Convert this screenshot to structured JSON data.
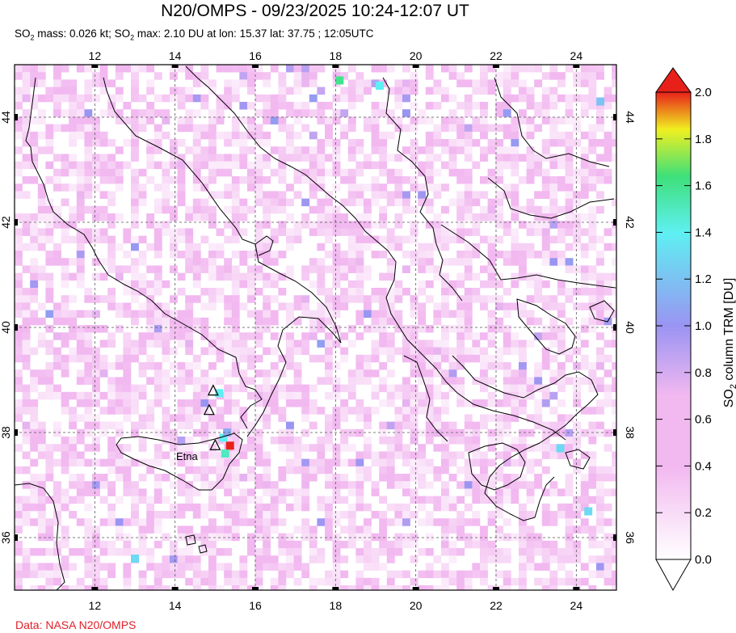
{
  "title": "N20/OMPS - 09/23/2025 10:24-12:07 UT",
  "subtitle": {
    "so2_mass_prefix": "SO",
    "so2_mass_sub": "2",
    "so2_mass_text": " mass: 0.026 kt; SO",
    "so2_max_sub": "2",
    "so2_max_text": " max: 2.10 DU at lon: 15.37 lat: 37.75 ; 12:05UTC"
  },
  "source": "Data: NASA N20/OMPS",
  "map": {
    "lon_ticks": [
      "12",
      "14",
      "16",
      "18",
      "20",
      "22",
      "24"
    ],
    "lat_ticks": [
      "36",
      "38",
      "40",
      "42",
      "44"
    ],
    "lon_range": [
      10,
      25
    ],
    "lat_range": [
      35,
      45
    ],
    "volcano_label": "Etna",
    "volcanoes": [
      {
        "name": "Etna",
        "lon": 15.0,
        "lat": 37.75
      },
      {
        "name": "",
        "lon": 14.95,
        "lat": 38.79
      },
      {
        "name": "",
        "lon": 14.85,
        "lat": 38.42
      }
    ]
  },
  "colorbar": {
    "label_prefix": "SO",
    "label_sub": "2",
    "label_suffix": " column TRM [DU]",
    "ticks": [
      "0.0",
      "0.2",
      "0.4",
      "0.6",
      "0.8",
      "1.0",
      "1.2",
      "1.4",
      "1.6",
      "1.8",
      "2.0"
    ],
    "range": [
      0,
      2
    ],
    "colors": {
      "low": "#ffffff",
      "pink": "#f2b8f0",
      "purple": "#9a94f2",
      "cyan": "#5ef0f2",
      "green": "#3ee07a",
      "yellow": "#f0f020",
      "orange": "#f89020",
      "red": "#e8201a"
    }
  },
  "chart_data": {
    "type": "heatmap",
    "title": "N20/OMPS - 09/23/2025 10:24-12:07 UT",
    "xlabel": "",
    "ylabel": "",
    "xlim": [
      10,
      25
    ],
    "ylim": [
      35,
      45
    ],
    "value_label": "SO2 column TRM [DU]",
    "value_range": [
      0,
      2
    ],
    "max_point": {
      "lon": 15.37,
      "lat": 37.75,
      "value": 2.1
    },
    "notable_cells": [
      {
        "lon": 15.37,
        "lat": 37.75,
        "value": 2.1
      },
      {
        "lon": 15.2,
        "lat": 37.9,
        "value": 1.4
      },
      {
        "lon": 15.25,
        "lat": 37.6,
        "value": 1.5
      },
      {
        "lon": 15.3,
        "lat": 38.0,
        "value": 1.1
      },
      {
        "lon": 15.1,
        "lat": 38.75,
        "value": 1.4
      },
      {
        "lon": 18.1,
        "lat": 44.7,
        "value": 1.6
      },
      {
        "lon": 19.1,
        "lat": 44.6,
        "value": 1.4
      },
      {
        "lon": 24.6,
        "lat": 44.3,
        "value": 1.2
      },
      {
        "lon": 23.6,
        "lat": 37.7,
        "value": 1.3
      },
      {
        "lon": 24.3,
        "lat": 36.5,
        "value": 1.3
      },
      {
        "lon": 13.0,
        "lat": 35.6,
        "value": 1.3
      }
    ]
  }
}
